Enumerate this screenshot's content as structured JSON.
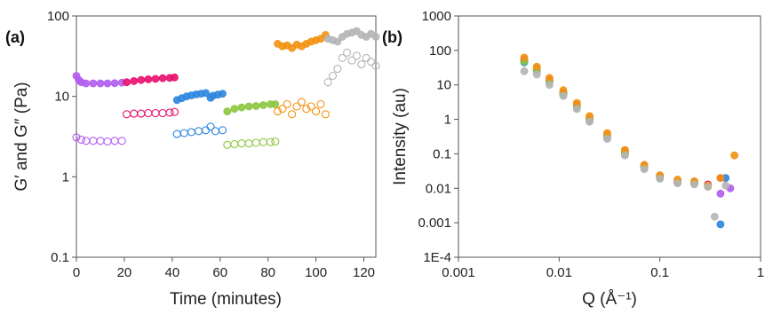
{
  "colors": {
    "purple": "#b35cf0",
    "magenta": "#e8106d",
    "blue": "#2e86de",
    "green": "#8cc63f",
    "orange": "#f39212",
    "gray": "#b5b5b5",
    "axis": "#555555"
  },
  "chart_data": [
    {
      "type": "scatter",
      "panel_label": "(a)",
      "title": "",
      "xlabel": "Time (minutes)",
      "ylabel": "G′ and G″ (Pa)",
      "xlim": [
        0,
        125
      ],
      "ylim": [
        0.1,
        100
      ],
      "yscale": "log",
      "xticks": [
        "0",
        "20",
        "40",
        "60",
        "80",
        "100",
        "120"
      ],
      "yticks": [
        "0.1",
        "1",
        "10",
        "100"
      ],
      "legend": "none",
      "series": [
        {
          "color": "purple",
          "filled": true,
          "x": [
            0,
            1,
            2,
            4,
            7,
            10,
            13,
            16,
            19
          ],
          "y": [
            18,
            16,
            15,
            14.5,
            14.5,
            14.5,
            14.5,
            14.6,
            14.8
          ]
        },
        {
          "color": "purple",
          "filled": false,
          "x": [
            0,
            2,
            4,
            7,
            10,
            13,
            16,
            19
          ],
          "y": [
            3.1,
            2.9,
            2.8,
            2.8,
            2.8,
            2.75,
            2.8,
            2.8
          ]
        },
        {
          "color": "magenta",
          "filled": true,
          "x": [
            21,
            24,
            27,
            30,
            33,
            36,
            39,
            41
          ],
          "y": [
            15,
            15.5,
            16,
            16.3,
            16.5,
            16.8,
            17,
            17.2
          ]
        },
        {
          "color": "magenta",
          "filled": false,
          "x": [
            21,
            24,
            27,
            30,
            33,
            36,
            39,
            41
          ],
          "y": [
            6,
            6.1,
            6.1,
            6.2,
            6.2,
            6.2,
            6.3,
            6.4
          ]
        },
        {
          "color": "blue",
          "filled": true,
          "x": [
            42,
            44,
            46,
            48,
            50,
            52,
            54,
            56,
            57,
            59,
            61
          ],
          "y": [
            9,
            9.5,
            10,
            10.3,
            10.6,
            10.8,
            11,
            9.6,
            10.2,
            10.5,
            10.8
          ]
        },
        {
          "color": "blue",
          "filled": false,
          "x": [
            42,
            45,
            48,
            51,
            54,
            56,
            58,
            61
          ],
          "y": [
            3.4,
            3.5,
            3.6,
            3.7,
            3.8,
            4.2,
            3.7,
            3.8
          ]
        },
        {
          "color": "green",
          "filled": true,
          "x": [
            63,
            66,
            69,
            72,
            75,
            78,
            81,
            83
          ],
          "y": [
            6.5,
            7,
            7.3,
            7.5,
            7.6,
            7.8,
            8,
            8
          ]
        },
        {
          "color": "green",
          "filled": false,
          "x": [
            63,
            66,
            69,
            72,
            75,
            78,
            81,
            83
          ],
          "y": [
            2.5,
            2.55,
            2.6,
            2.6,
            2.65,
            2.7,
            2.7,
            2.75
          ]
        },
        {
          "color": "orange",
          "filled": true,
          "x": [
            84,
            86,
            88,
            90,
            92,
            94,
            96,
            98,
            100,
            102,
            104
          ],
          "y": [
            45,
            42,
            43,
            40,
            44,
            42,
            45,
            48,
            50,
            52,
            58
          ]
        },
        {
          "color": "orange",
          "filled": false,
          "x": [
            84,
            86,
            88,
            90,
            92,
            94,
            96,
            98,
            100,
            102,
            104
          ],
          "y": [
            6.5,
            7,
            8,
            6,
            7.5,
            8.5,
            7,
            7.5,
            6.5,
            8,
            6
          ]
        },
        {
          "color": "gray",
          "filled": true,
          "x": [
            105,
            107,
            109,
            111,
            113,
            115,
            117,
            119,
            121,
            123,
            125
          ],
          "y": [
            52,
            50,
            48,
            55,
            60,
            62,
            65,
            58,
            55,
            60,
            55
          ]
        },
        {
          "color": "gray",
          "filled": false,
          "x": [
            105,
            107,
            109,
            111,
            113,
            115,
            117,
            119,
            121,
            123,
            125
          ],
          "y": [
            15,
            18,
            22,
            30,
            35,
            28,
            32,
            25,
            30,
            27,
            24
          ]
        }
      ]
    },
    {
      "type": "scatter",
      "panel_label": "(b)",
      "title": "",
      "xlabel": "Q (Å⁻¹)",
      "ylabel": "Intensity (au)",
      "xlim": [
        0.001,
        1
      ],
      "ylim": [
        0.0001,
        1000
      ],
      "xscale": "log",
      "yscale": "log",
      "xticks": [
        "0.001",
        "0.01",
        "0.1",
        "1"
      ],
      "yticks": [
        "1E-4",
        "0.001",
        "0.01",
        "0.1",
        "1",
        "10",
        "100",
        "1000"
      ],
      "legend": "none",
      "series": [
        {
          "color": "purple",
          "filled": true,
          "x": [
            0.0045,
            0.006,
            0.008,
            0.011,
            0.015,
            0.02,
            0.03,
            0.045,
            0.07,
            0.1,
            0.15,
            0.22,
            0.3,
            0.4,
            0.5
          ],
          "y": [
            55,
            30,
            14,
            6,
            2.6,
            1.1,
            0.35,
            0.12,
            0.045,
            0.022,
            0.016,
            0.014,
            0.012,
            0.007,
            0.01
          ]
        },
        {
          "color": "magenta",
          "filled": true,
          "x": [
            0.0045,
            0.006,
            0.008,
            0.011,
            0.015,
            0.02,
            0.03,
            0.045,
            0.07,
            0.1,
            0.15,
            0.22,
            0.3,
            0.4
          ],
          "y": [
            50,
            28,
            13,
            5.6,
            2.4,
            1.0,
            0.33,
            0.11,
            0.042,
            0.021,
            0.016,
            0.015,
            0.013,
            0.02
          ]
        },
        {
          "color": "blue",
          "filled": true,
          "x": [
            0.0045,
            0.006,
            0.008,
            0.011,
            0.015,
            0.02,
            0.03,
            0.045,
            0.07,
            0.1,
            0.15,
            0.22,
            0.3,
            0.4,
            0.45
          ],
          "y": [
            45,
            26,
            12,
            5.2,
            2.2,
            0.95,
            0.3,
            0.1,
            0.04,
            0.02,
            0.015,
            0.014,
            0.012,
            0.0009,
            0.02
          ]
        },
        {
          "color": "green",
          "filled": true,
          "x": [
            0.0045,
            0.006,
            0.008,
            0.011,
            0.015,
            0.02,
            0.03,
            0.045,
            0.07,
            0.1,
            0.15,
            0.22,
            0.3
          ],
          "y": [
            48,
            27,
            12.5,
            5.4,
            2.3,
            1.0,
            0.32,
            0.105,
            0.041,
            0.021,
            0.016,
            0.014,
            0.012
          ]
        },
        {
          "color": "orange",
          "filled": true,
          "x": [
            0.0045,
            0.006,
            0.008,
            0.011,
            0.015,
            0.02,
            0.03,
            0.045,
            0.07,
            0.1,
            0.15,
            0.22,
            0.3,
            0.4,
            0.55
          ],
          "y": [
            62,
            34,
            16,
            7,
            3,
            1.25,
            0.4,
            0.13,
            0.048,
            0.024,
            0.018,
            0.016,
            0.012,
            0.02,
            0.09
          ]
        },
        {
          "color": "gray",
          "filled": true,
          "x": [
            0.0045,
            0.006,
            0.008,
            0.011,
            0.015,
            0.02,
            0.03,
            0.045,
            0.07,
            0.1,
            0.15,
            0.22,
            0.3,
            0.35,
            0.45
          ],
          "y": [
            25,
            20,
            10,
            4.8,
            2.0,
            0.85,
            0.27,
            0.09,
            0.036,
            0.019,
            0.014,
            0.013,
            0.011,
            0.0015,
            0.012
          ]
        }
      ]
    }
  ]
}
